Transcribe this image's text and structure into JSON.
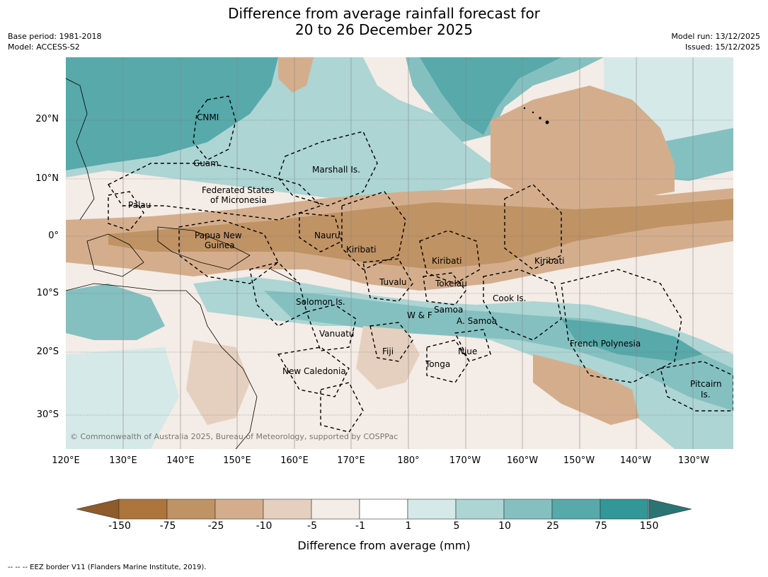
{
  "header": {
    "title_line1": "Difference from average rainfall forecast for",
    "title_line2": "20 to 26 December 2025",
    "base_period": "Base period: 1981-2018",
    "model": "Model: ACCESS-S2",
    "model_run": "Model run: 13/12/2025",
    "issued": "Issued: 15/12/2025"
  },
  "map": {
    "lat_labels": [
      "20°N",
      "10°N",
      "0°",
      "10°S",
      "20°S",
      "30°S"
    ],
    "lon_labels": [
      "120°E",
      "130°E",
      "140°E",
      "150°E",
      "160°E",
      "170°E",
      "180°",
      "170°W",
      "160°W",
      "150°W",
      "140°W",
      "130°W"
    ],
    "region_labels": {
      "cnmi": "CNMI",
      "guam": "Guam",
      "marshall": "Marshall Is.",
      "fsm1": "Federated States",
      "fsm2": "of Micronesia",
      "palau": "Palau",
      "png1": "Papua New",
      "png2": "Guinea",
      "nauru": "Nauru",
      "kiribati_w": "Kiribati",
      "kiribati_c": "Kiribati",
      "kiribati_e": "Kiribati",
      "tuvalu": "Tuvalu",
      "tokelau": "Tokelau",
      "cook": "Cook Is.",
      "solomon": "Solomon Is.",
      "wf": "W & F",
      "samoa": "Samoa",
      "asamoa": "A. Samoa",
      "vanuatu": "Vanuatu",
      "fiji": "Fiji",
      "niue": "Niue",
      "tonga": "Tonga",
      "newcal": "New Caledonia",
      "frpoly": "French Polynesia",
      "pitcairn1": "Pitcairn",
      "pitcairn2": "Is."
    },
    "copyright": "© Commonwealth of Australia 2025, Bureau of Meteorology, supported by COSPPac"
  },
  "legend": {
    "labels": [
      "-150",
      "-75",
      "-25",
      "-10",
      "-5",
      "-1",
      "1",
      "5",
      "10",
      "25",
      "75",
      "150"
    ],
    "colors": [
      "#8e5b2b",
      "#ad753b",
      "#c09364",
      "#d4ae8c",
      "#e5d0bf",
      "#f4ece6",
      "#ffffff",
      "#d5e9e8",
      "#acd5d4",
      "#85c0c0",
      "#57a9aa",
      "#329796",
      "#2a7474"
    ],
    "title": "Difference from average (mm)"
  },
  "footer": {
    "note": "--  --  -- EEZ border V11 (Flanders Marine Institute, 2019)."
  }
}
